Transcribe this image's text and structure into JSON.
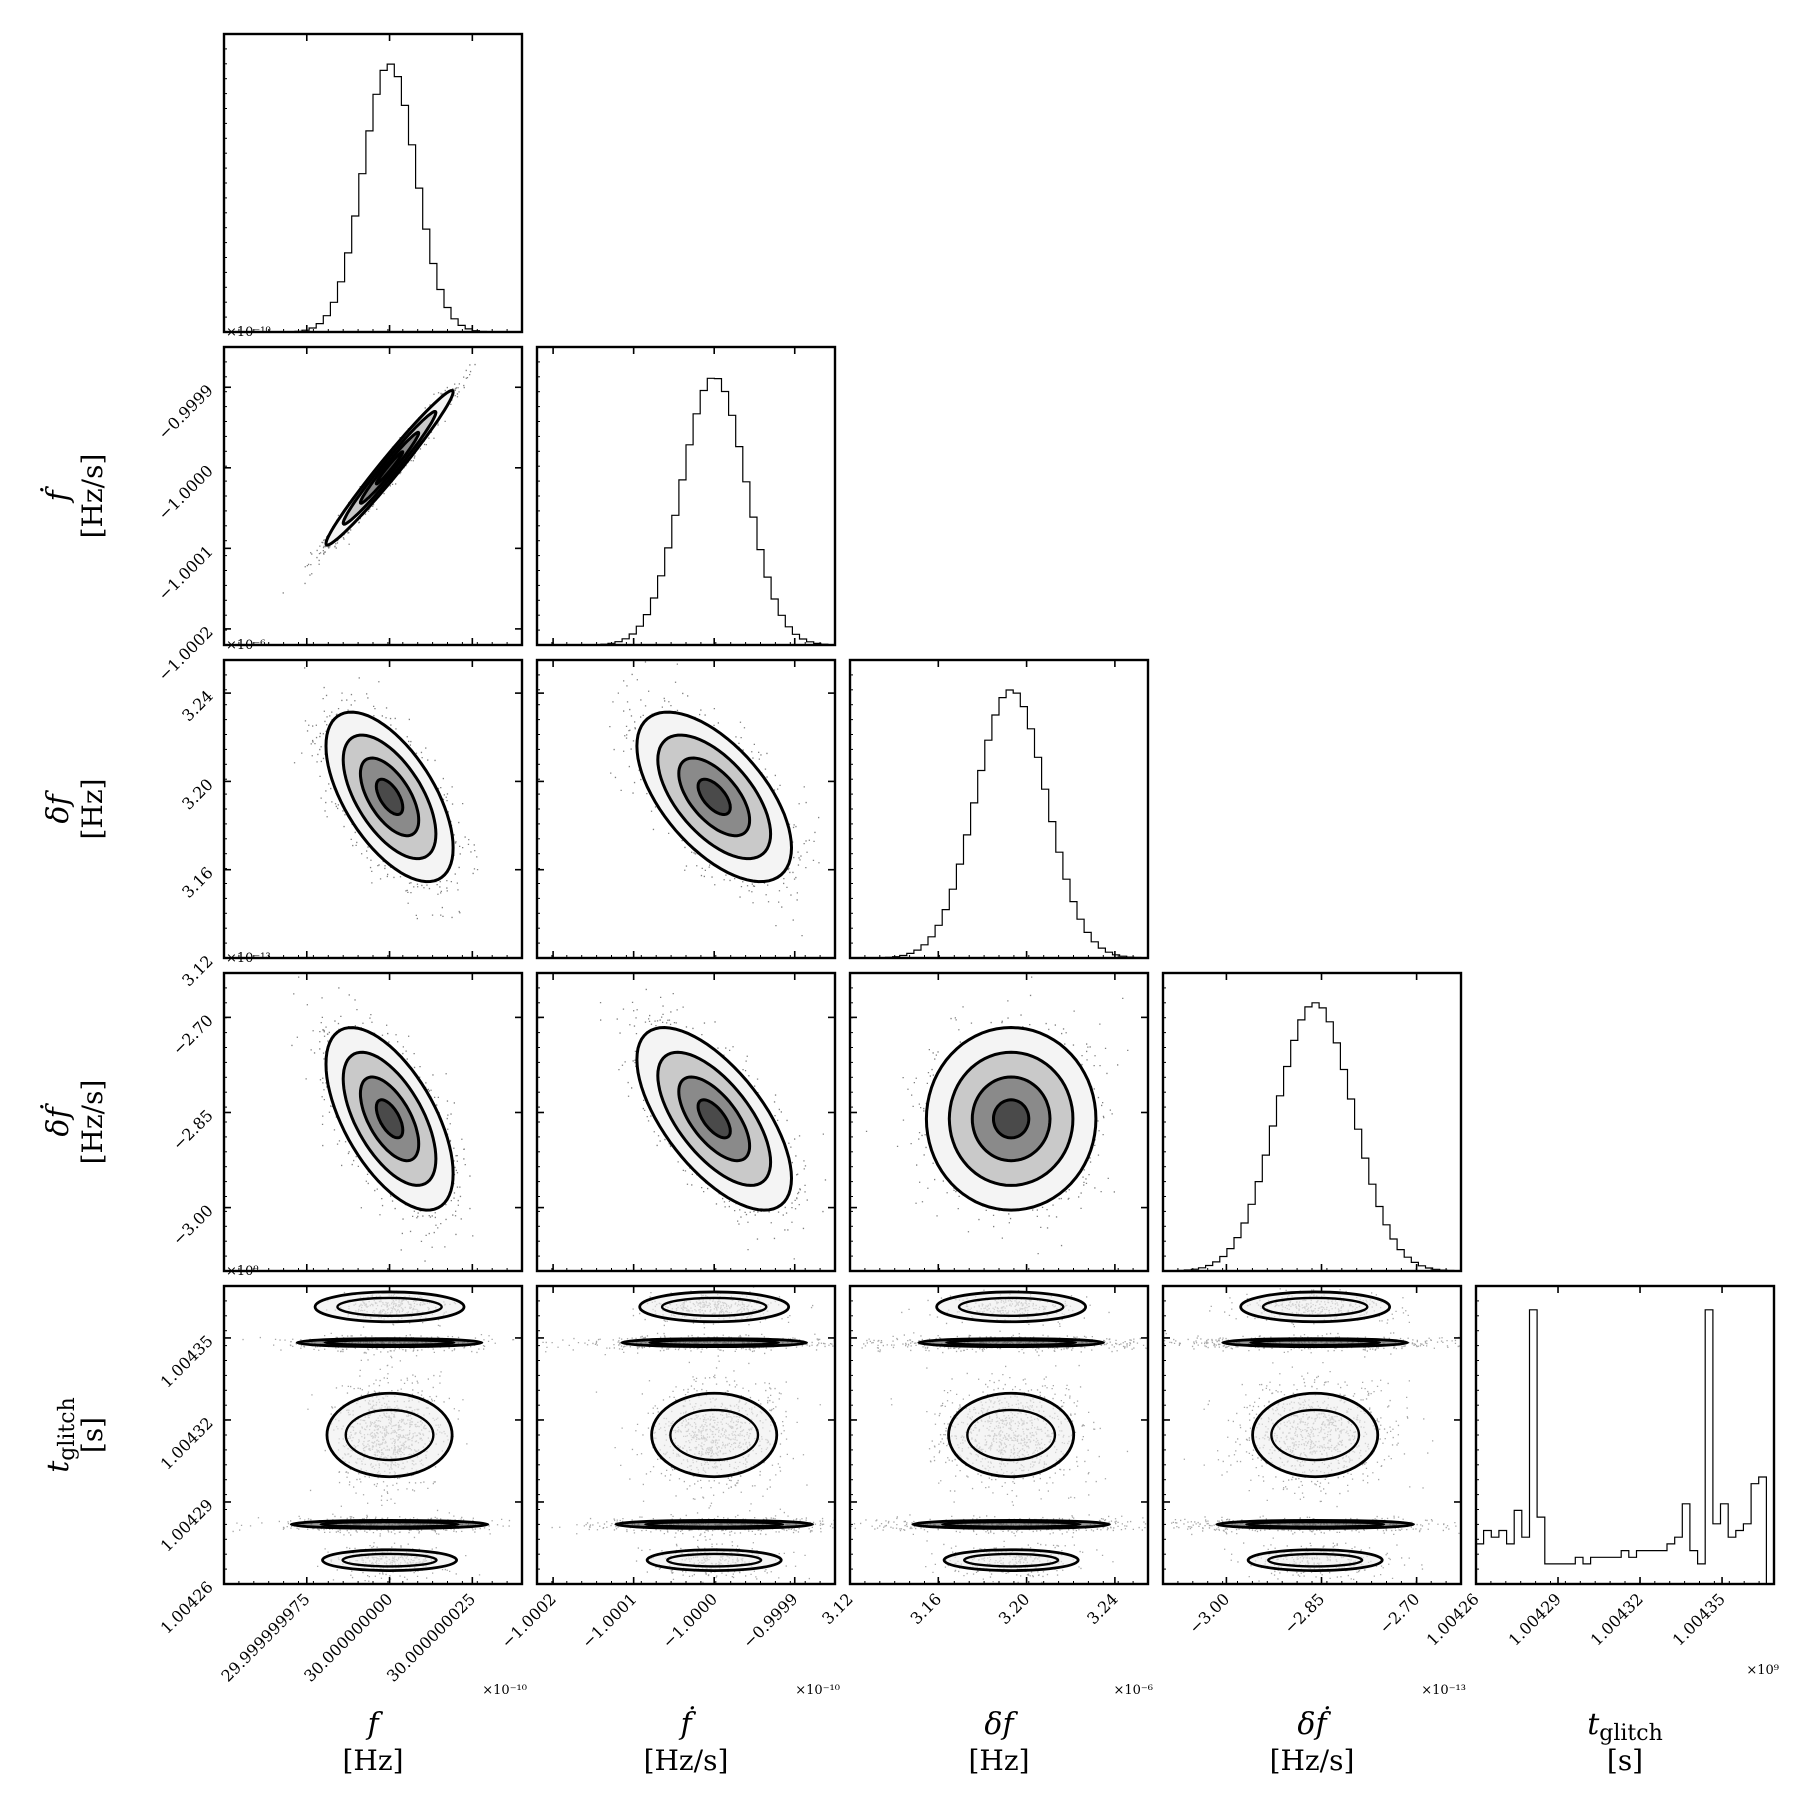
{
  "chart_data": {
    "type": "corner",
    "title": "",
    "parameters": [
      {
        "key": "f",
        "symbol": "f",
        "unit": "[Hz]",
        "center": 30.0,
        "sigma": 8e-09,
        "tick_labels": [
          "29.999999975",
          "30.000000000",
          "30.000000025"
        ],
        "tick_values": [
          29.999999975,
          30.0,
          30.000000025
        ],
        "range": [
          29.99999995,
          30.00000004
        ],
        "offset_label": "×10⁻¹⁰"
      },
      {
        "key": "fdot",
        "symbol": "ḟ",
        "unit": "[Hz/s]",
        "center": -1.0,
        "sigma": 4e-05,
        "tick_labels": [
          "−1.0002",
          "−1.0001",
          "−1.0000",
          "−0.9999"
        ],
        "tick_values": [
          -1.0002,
          -1.0001,
          -1.0,
          -0.9999
        ],
        "range": [
          -1.00022,
          -0.99985
        ],
        "offset_label": "×10⁻¹⁰"
      },
      {
        "key": "df",
        "symbol": "δf",
        "unit": "[Hz]",
        "center": 3.193,
        "sigma": 0.016,
        "tick_labels": [
          "3.12",
          "3.16",
          "3.20",
          "3.24"
        ],
        "tick_values": [
          3.12,
          3.16,
          3.2,
          3.24
        ],
        "range": [
          3.12,
          3.255
        ],
        "offset_label": "×10⁻⁶"
      },
      {
        "key": "dfdot",
        "symbol": "δḟ",
        "unit": "[Hz/s]",
        "center": -2.86,
        "sigma": 0.06,
        "tick_labels": [
          "−3.00",
          "−2.85",
          "−2.70"
        ],
        "tick_values": [
          -3.0,
          -2.85,
          -2.7
        ],
        "range": [
          -3.1,
          -2.63
        ],
        "offset_label": "×10⁻¹³"
      },
      {
        "key": "tglitch",
        "symbol": "t_glitch",
        "symbol_main": "t",
        "symbol_sub": "glitch",
        "unit": "[s]",
        "tick_labels": [
          "1.00426",
          "1.00429",
          "1.00432",
          "1.00435"
        ],
        "tick_values": [
          1.00426,
          1.00429,
          1.00432,
          1.00435
        ],
        "range": [
          1.00426,
          1.004369
        ],
        "offset_label": "×10⁹"
      }
    ],
    "row_offset_labels": [
      "×10⁻¹⁰",
      "×10⁻⁶",
      "×10⁻¹³",
      "×10⁹"
    ],
    "correlations": [
      {
        "pair": [
          "f",
          "fdot"
        ],
        "rho": 0.98
      },
      {
        "pair": [
          "f",
          "df"
        ],
        "rho": -0.6
      },
      {
        "pair": [
          "fdot",
          "df"
        ],
        "rho": -0.6
      },
      {
        "pair": [
          "f",
          "dfdot"
        ],
        "rho": -0.6
      },
      {
        "pair": [
          "fdot",
          "dfdot"
        ],
        "rho": -0.65
      },
      {
        "pair": [
          "df",
          "dfdot"
        ],
        "rho": 0.0
      }
    ],
    "tglitch_histogram": {
      "bin_edges_start": 1.00426,
      "bin_edges_end": 1.004369,
      "counts": [
        6,
        8,
        7,
        8,
        6,
        11,
        7,
        41,
        10,
        3,
        3,
        3,
        3,
        4,
        3,
        4,
        4,
        4,
        4,
        5,
        4,
        5,
        5,
        5,
        5,
        6,
        7,
        12,
        5,
        3,
        41,
        9,
        12,
        7,
        8,
        9,
        15,
        16,
        0
      ]
    },
    "grid": false,
    "legend": "none"
  }
}
